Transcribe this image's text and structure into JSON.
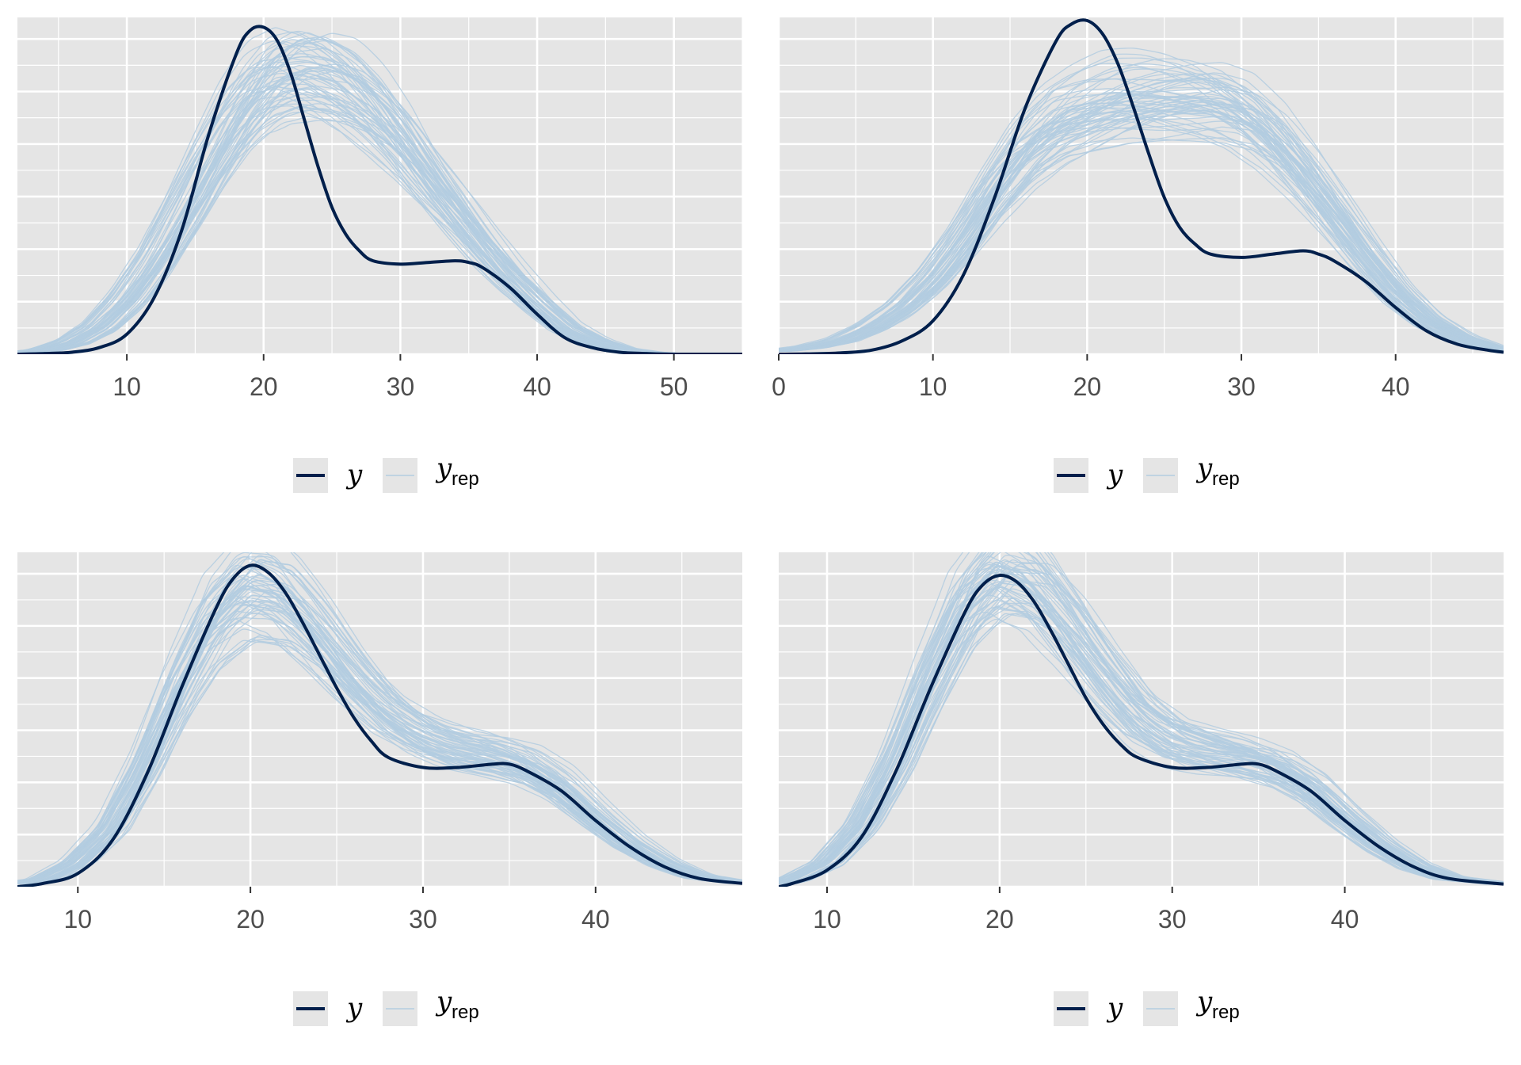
{
  "colors": {
    "panel_background": "#e5e5e5",
    "grid": "#ffffff",
    "observed_line": "#011f4b",
    "replicate_line": "#b3cde0",
    "legend_key_background": "#e5e5e5"
  },
  "legend": {
    "observed_label": "y",
    "replicate_label": "y",
    "replicate_subscript": "rep"
  },
  "chart_data": [
    {
      "type": "line",
      "description_y": "density (no y tick labels shown)",
      "xlim": [
        2,
        55
      ],
      "ylim": [
        0,
        1.0
      ],
      "x_ticks": [
        10,
        20,
        30,
        40,
        50
      ],
      "x_tick_labels": [
        "10",
        "20",
        "30",
        "40",
        "50"
      ],
      "replicate_count": 60,
      "series": [
        {
          "name": "y",
          "x": [
            2,
            4,
            6,
            8,
            10,
            12,
            14,
            16,
            18,
            19,
            20,
            21,
            22,
            23,
            24,
            25,
            26,
            27,
            28,
            30,
            32,
            34,
            35,
            36,
            38,
            40,
            42,
            44,
            46,
            48,
            50,
            55
          ],
          "y": [
            0,
            0.002,
            0.006,
            0.02,
            0.06,
            0.17,
            0.37,
            0.66,
            0.9,
            0.97,
            0.98,
            0.94,
            0.84,
            0.7,
            0.56,
            0.44,
            0.36,
            0.31,
            0.28,
            0.27,
            0.275,
            0.28,
            0.275,
            0.26,
            0.2,
            0.12,
            0.05,
            0.02,
            0.006,
            0.002,
            0,
            0
          ]
        },
        {
          "name": "y_rep",
          "x": [
            2,
            4,
            6,
            8,
            10,
            12,
            14,
            16,
            18,
            20,
            22,
            24,
            26,
            28,
            30,
            32,
            34,
            36,
            38,
            40,
            42,
            44,
            46,
            48,
            50,
            55
          ],
          "y": [
            0.004,
            0.012,
            0.035,
            0.08,
            0.16,
            0.27,
            0.41,
            0.56,
            0.7,
            0.8,
            0.84,
            0.83,
            0.79,
            0.72,
            0.63,
            0.52,
            0.42,
            0.32,
            0.23,
            0.15,
            0.08,
            0.04,
            0.015,
            0.005,
            0.001,
            0
          ]
        }
      ]
    },
    {
      "type": "line",
      "description_y": "density (no y tick labels shown)",
      "xlim": [
        0,
        47
      ],
      "ylim": [
        0,
        1.0
      ],
      "x_ticks": [
        0,
        10,
        20,
        30,
        40
      ],
      "x_tick_labels": [
        "0",
        "10",
        "20",
        "30",
        "40"
      ],
      "replicate_count": 60,
      "series": [
        {
          "name": "y",
          "x": [
            0,
            2,
            4,
            6,
            8,
            10,
            12,
            14,
            16,
            18,
            19,
            20,
            21,
            22,
            23,
            24,
            25,
            26,
            27,
            28,
            30,
            32,
            34,
            35,
            36,
            38,
            40,
            42,
            44,
            46,
            47
          ],
          "y": [
            0,
            0.001,
            0.004,
            0.012,
            0.04,
            0.1,
            0.24,
            0.47,
            0.74,
            0.94,
            0.99,
            1.0,
            0.96,
            0.87,
            0.74,
            0.6,
            0.47,
            0.38,
            0.33,
            0.3,
            0.29,
            0.3,
            0.31,
            0.3,
            0.28,
            0.22,
            0.14,
            0.07,
            0.03,
            0.012,
            0.006
          ]
        },
        {
          "name": "y_rep",
          "x": [
            0,
            2,
            4,
            6,
            8,
            10,
            12,
            14,
            16,
            18,
            20,
            22,
            24,
            26,
            28,
            30,
            32,
            34,
            36,
            38,
            40,
            42,
            44,
            46,
            47
          ],
          "y": [
            0.01,
            0.02,
            0.04,
            0.08,
            0.14,
            0.23,
            0.35,
            0.49,
            0.61,
            0.69,
            0.73,
            0.76,
            0.77,
            0.77,
            0.76,
            0.72,
            0.64,
            0.53,
            0.41,
            0.29,
            0.18,
            0.1,
            0.05,
            0.02,
            0.012
          ]
        }
      ]
    },
    {
      "type": "line",
      "description_y": "density (no y tick labels shown)",
      "xlim": [
        6.5,
        48.5
      ],
      "ylim": [
        0,
        1.0
      ],
      "x_ticks": [
        10,
        20,
        30,
        40
      ],
      "x_tick_labels": [
        "10",
        "20",
        "30",
        "40"
      ],
      "replicate_count": 60,
      "series": [
        {
          "name": "y",
          "x": [
            6.5,
            8,
            10,
            12,
            14,
            16,
            18,
            19,
            20,
            21,
            22,
            23,
            24,
            25,
            26,
            27,
            28,
            30,
            32,
            34,
            35,
            36,
            38,
            40,
            42,
            44,
            46,
            48.5
          ],
          "y": [
            0,
            0.01,
            0.04,
            0.14,
            0.34,
            0.6,
            0.84,
            0.93,
            0.97,
            0.95,
            0.89,
            0.8,
            0.7,
            0.6,
            0.51,
            0.44,
            0.39,
            0.36,
            0.36,
            0.37,
            0.37,
            0.35,
            0.29,
            0.2,
            0.12,
            0.06,
            0.025,
            0.01
          ]
        },
        {
          "name": "y_rep",
          "x": [
            6.5,
            8,
            10,
            12,
            14,
            16,
            18,
            20,
            22,
            24,
            26,
            28,
            30,
            32,
            34,
            36,
            38,
            40,
            42,
            44,
            46,
            48.5
          ],
          "y": [
            0.01,
            0.02,
            0.07,
            0.17,
            0.36,
            0.6,
            0.8,
            0.9,
            0.87,
            0.76,
            0.63,
            0.52,
            0.45,
            0.41,
            0.39,
            0.36,
            0.3,
            0.21,
            0.13,
            0.07,
            0.03,
            0.012
          ]
        }
      ]
    },
    {
      "type": "line",
      "description_y": "density (no y tick labels shown)",
      "xlim": [
        7.2,
        49.2
      ],
      "ylim": [
        0,
        1.0
      ],
      "x_ticks": [
        10,
        20,
        30,
        40
      ],
      "x_tick_labels": [
        "10",
        "20",
        "30",
        "40"
      ],
      "replicate_count": 60,
      "series": [
        {
          "name": "y",
          "x": [
            7.2,
            8,
            10,
            12,
            14,
            16,
            18,
            19,
            20,
            21,
            22,
            23,
            24,
            25,
            26,
            27,
            28,
            30,
            32,
            34,
            35,
            36,
            38,
            40,
            42,
            44,
            46,
            49.2
          ],
          "y": [
            0,
            0.01,
            0.05,
            0.15,
            0.35,
            0.6,
            0.83,
            0.91,
            0.94,
            0.92,
            0.86,
            0.77,
            0.67,
            0.57,
            0.49,
            0.43,
            0.39,
            0.36,
            0.36,
            0.37,
            0.37,
            0.35,
            0.29,
            0.2,
            0.12,
            0.06,
            0.025,
            0.008
          ]
        },
        {
          "name": "y_rep",
          "x": [
            7.2,
            8,
            10,
            12,
            14,
            16,
            18,
            20,
            22,
            24,
            26,
            28,
            30,
            32,
            34,
            36,
            38,
            40,
            42,
            44,
            46,
            49.2
          ],
          "y": [
            0.01,
            0.02,
            0.07,
            0.18,
            0.37,
            0.61,
            0.82,
            0.92,
            0.88,
            0.76,
            0.62,
            0.5,
            0.43,
            0.4,
            0.38,
            0.35,
            0.29,
            0.2,
            0.12,
            0.06,
            0.025,
            0.008
          ]
        }
      ]
    }
  ]
}
